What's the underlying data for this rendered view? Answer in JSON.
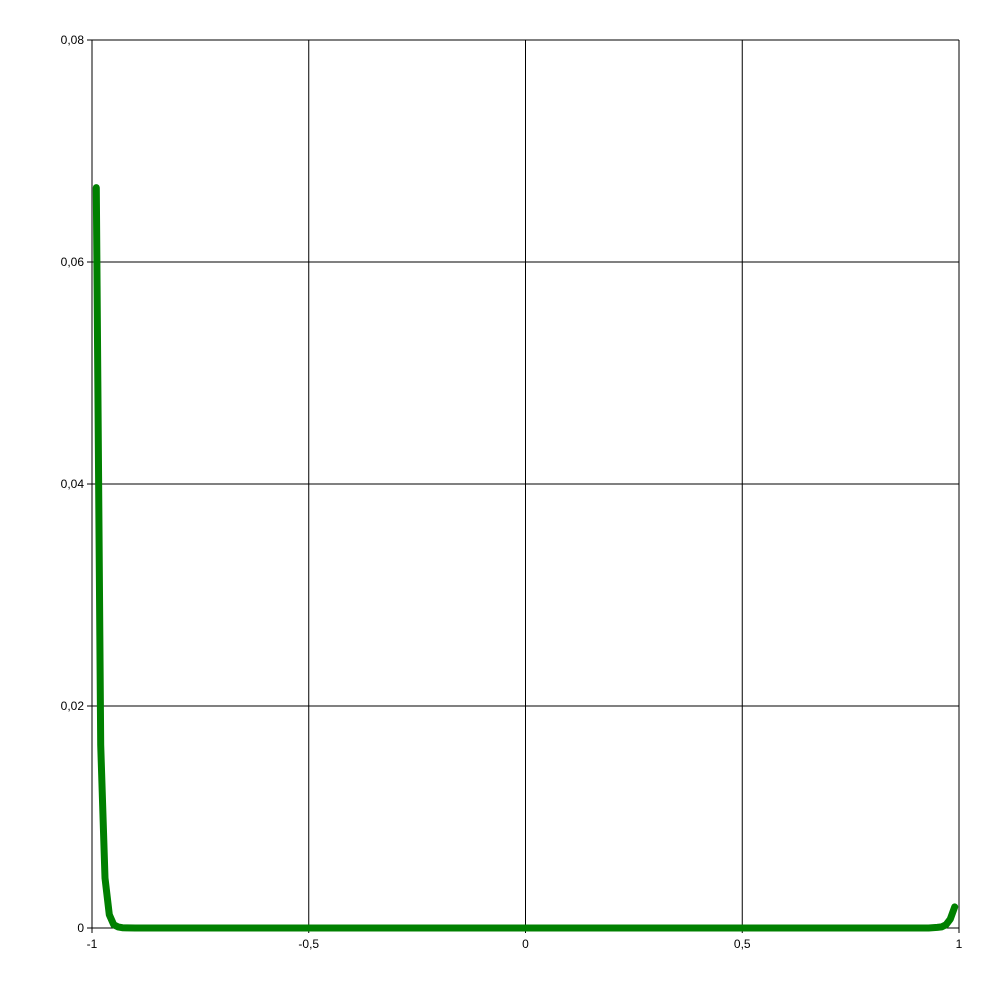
{
  "chart_data": {
    "type": "line",
    "xlim": [
      -1,
      1
    ],
    "ylim": [
      0,
      0.08
    ],
    "x_ticks": [
      -1,
      -0.5,
      0,
      0.5,
      1
    ],
    "x_tick_labels": [
      "-1",
      "-0,5",
      "0",
      "0,5",
      "1"
    ],
    "y_ticks": [
      0,
      0.02,
      0.04,
      0.06,
      0.08
    ],
    "y_tick_labels": [
      "0",
      "0,02",
      "0,04",
      "0,06",
      "0,08"
    ],
    "grid": true,
    "series": [
      {
        "color": "#008000",
        "x": [
          -0.99,
          -0.98,
          -0.97,
          -0.96,
          -0.95,
          -0.94,
          -0.93,
          -0.92,
          -0.9,
          -0.8,
          -0.6,
          -0.4,
          -0.2,
          0,
          0.2,
          0.4,
          0.6,
          0.8,
          0.9,
          0.93,
          0.95,
          0.96,
          0.97,
          0.98,
          0.99
        ],
        "y": [
          0.0667,
          0.0165,
          0.0045,
          0.0012,
          0.0003,
          0.0001,
          3e-05,
          1e-05,
          0,
          0,
          0,
          0,
          0,
          0,
          0,
          0,
          0,
          0,
          0,
          0,
          5e-05,
          0.0001,
          0.0003,
          0.0008,
          0.0019
        ]
      }
    ]
  }
}
